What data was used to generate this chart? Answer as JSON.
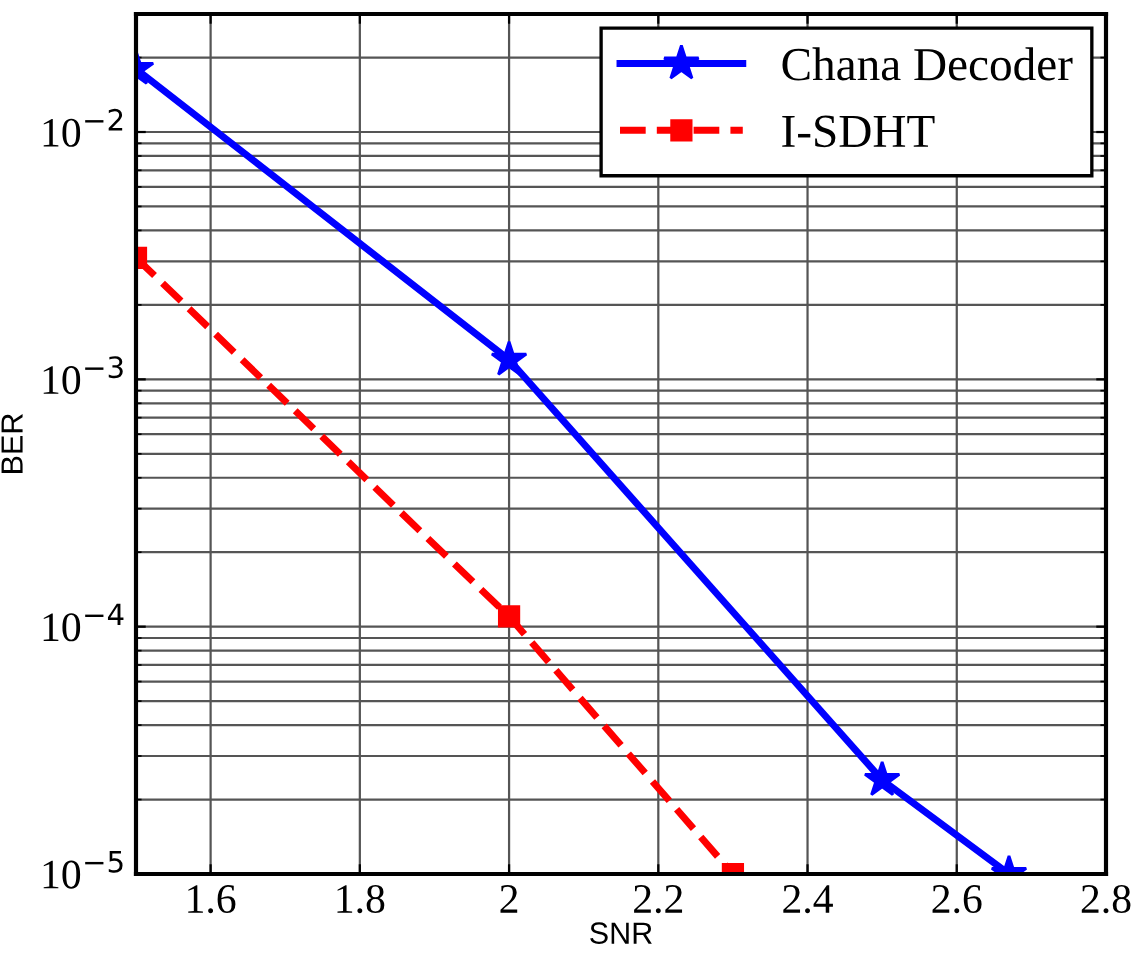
{
  "chart_data": {
    "type": "line",
    "xlabel": "SNR",
    "ylabel": "BER",
    "log": "y",
    "xlim": [
      1.5,
      2.8
    ],
    "xticks": [
      1.6,
      1.8,
      2,
      2.2,
      2.4,
      2.6,
      2.8
    ],
    "ylim": [
      1e-05,
      0.03
    ],
    "yticks": [
      {
        "value": 1e-05,
        "label": "10$^{−5}$"
      },
      {
        "value": 0.0001,
        "label": "10$^{−4}$"
      },
      {
        "value": 0.001,
        "label": "10$^{−3}$"
      },
      {
        "value": 0.01,
        "label": "10$^{−2}$"
      }
    ],
    "grid": true,
    "legend": "top right",
    "series": [
      {
        "name": "Chana Decoder",
        "color": "#0000ff",
        "marker": "star",
        "line_style": "solid",
        "x": [
          1.5,
          2,
          2.5,
          2.67
        ],
        "values": [
          0.018,
          0.0012,
          2.4e-05,
          1e-05
        ]
      },
      {
        "name": "I-SDHT",
        "color": "#ff0000",
        "marker": "square",
        "line_style": "dashed",
        "x": [
          1.5,
          2,
          2.3
        ],
        "values": [
          0.0031,
          0.00011,
          1e-05
        ]
      }
    ]
  }
}
